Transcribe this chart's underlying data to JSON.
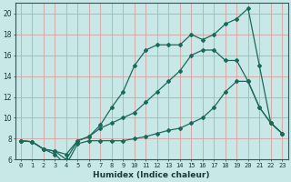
{
  "xlabel": "Humidex (Indice chaleur)",
  "bg_color": "#c8e8e8",
  "grid_color": "#d4a0a0",
  "line_color": "#1a6a5a",
  "xlim": [
    -0.5,
    23.5
  ],
  "ylim": [
    6,
    21
  ],
  "xticks": [
    0,
    1,
    2,
    3,
    4,
    5,
    6,
    7,
    8,
    9,
    10,
    11,
    12,
    13,
    14,
    15,
    16,
    17,
    18,
    19,
    20,
    21,
    22,
    23
  ],
  "yticks": [
    6,
    8,
    10,
    12,
    14,
    16,
    18,
    20
  ],
  "lines": [
    {
      "x": [
        0,
        1,
        2,
        3,
        4,
        5,
        6,
        7,
        8,
        9,
        10,
        11,
        12,
        13,
        14,
        15,
        16,
        17,
        18,
        19,
        20,
        21,
        22,
        23
      ],
      "y": [
        7.8,
        7.7,
        7.0,
        6.8,
        6.0,
        7.8,
        8.2,
        9.3,
        11.0,
        12.5,
        15.0,
        16.5,
        17.0,
        17.0,
        17.0,
        18.0,
        17.5,
        18.0,
        19.0,
        19.5,
        20.5,
        15.0,
        9.5,
        8.5
      ]
    },
    {
      "x": [
        0,
        1,
        2,
        3,
        4,
        5,
        6,
        7,
        8,
        9,
        10,
        11,
        12,
        13,
        14,
        15,
        16,
        17,
        18,
        19,
        20,
        21,
        22,
        23
      ],
      "y": [
        7.8,
        7.7,
        7.0,
        6.8,
        6.5,
        7.8,
        8.2,
        9.0,
        9.5,
        10.0,
        10.5,
        11.5,
        12.5,
        13.5,
        14.5,
        16.0,
        16.5,
        16.5,
        15.5,
        15.5,
        13.5,
        11.0,
        9.5,
        8.5
      ]
    },
    {
      "x": [
        0,
        1,
        2,
        3,
        4,
        5,
        6,
        7,
        8,
        9,
        10,
        11,
        12,
        13,
        14,
        15,
        16,
        17,
        18,
        19,
        20,
        21,
        22,
        23
      ],
      "y": [
        7.8,
        7.7,
        7.0,
        6.5,
        5.5,
        7.5,
        7.8,
        7.8,
        7.8,
        7.8,
        8.0,
        8.2,
        8.5,
        8.8,
        9.0,
        9.5,
        10.0,
        11.0,
        12.5,
        13.5,
        13.5,
        11.0,
        9.5,
        8.5
      ]
    }
  ]
}
